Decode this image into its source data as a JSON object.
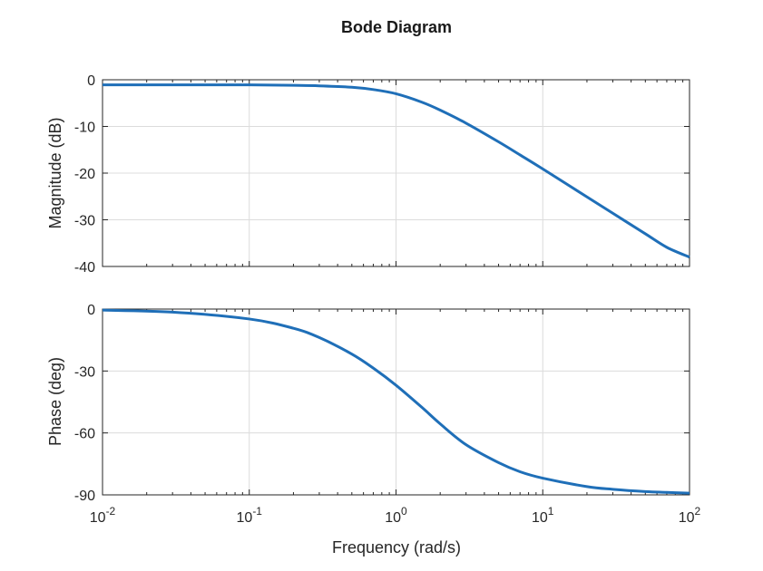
{
  "chart_data": {
    "type": "line",
    "title": "Bode Diagram",
    "xlabel": "Frequency (rad/s)",
    "xscale": "log",
    "xlim": [
      0.01,
      100
    ],
    "x_ticks": [
      {
        "base": "10",
        "exp": "-2"
      },
      {
        "base": "10",
        "exp": "-1"
      },
      {
        "base": "10",
        "exp": "0"
      },
      {
        "base": "10",
        "exp": "1"
      },
      {
        "base": "10",
        "exp": "2"
      }
    ],
    "grid": true,
    "line_color": "#1f6fb8",
    "subplots": [
      {
        "id": "magnitude",
        "ylabel": "Magnitude (dB)",
        "ylim": [
          -40,
          0
        ],
        "y_ticks": [
          "0",
          "-10",
          "-20",
          "-30",
          "-40"
        ],
        "series": [
          {
            "x": [
              0.01,
              0.03,
              0.1,
              0.2,
              0.3,
              0.5,
              0.7,
              1,
              1.5,
              2,
              3,
              5,
              7,
              10,
              20,
              30,
              50,
              70,
              100
            ],
            "values": [
              -1.1,
              -1.1,
              -1.1,
              -1.2,
              -1.3,
              -1.6,
              -2.1,
              -3.0,
              -4.8,
              -6.5,
              -9.3,
              -13.3,
              -16.1,
              -19.1,
              -25.1,
              -28.6,
              -33.0,
              -35.9,
              -38.0
            ]
          }
        ]
      },
      {
        "id": "phase",
        "ylabel": "Phase (deg)",
        "ylim": [
          -90,
          0
        ],
        "y_ticks": [
          "0",
          "-30",
          "-60",
          "-90"
        ],
        "series": [
          {
            "x": [
              0.01,
              0.03,
              0.1,
              0.2,
              0.3,
              0.5,
              0.7,
              1,
              1.5,
              2,
              3,
              5,
              7,
              10,
              20,
              30,
              50,
              70,
              100
            ],
            "values": [
              -0.5,
              -1.5,
              -4.8,
              -9.3,
              -13.8,
              -21.8,
              -28.6,
              -36.9,
              -47.6,
              -55.6,
              -65.7,
              -74.4,
              -78.8,
              -81.9,
              -86.0,
              -87.3,
              -88.4,
              -88.8,
              -89.2
            ]
          }
        ]
      }
    ]
  }
}
